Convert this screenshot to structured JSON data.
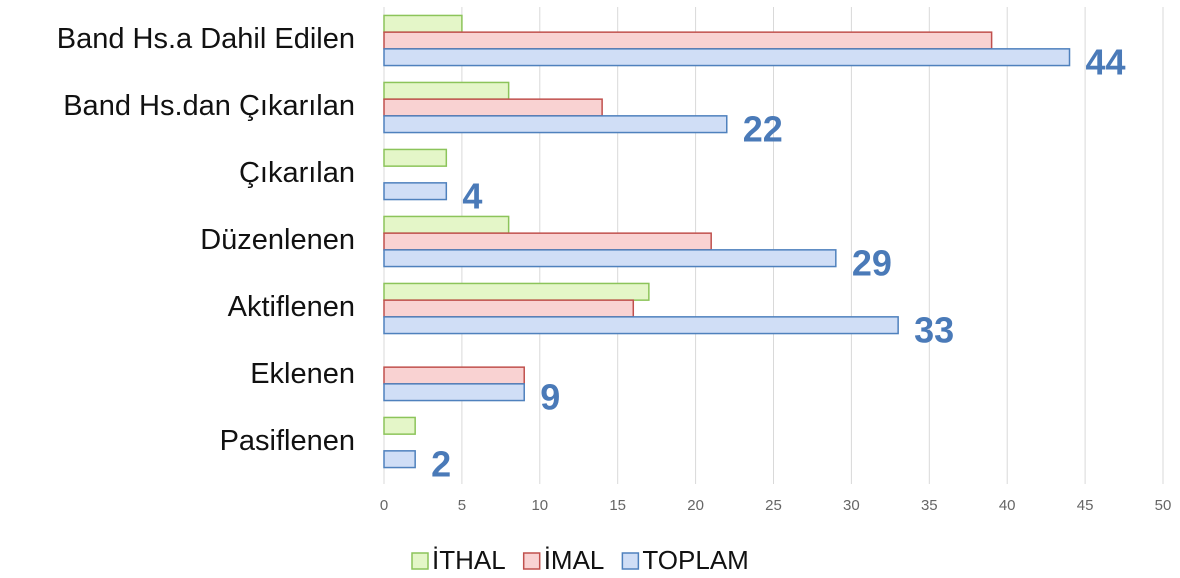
{
  "chart_data": {
    "type": "hbar",
    "categories": [
      "Band Hs.a Dahil Edilen",
      "Band Hs.dan Çıkarılan",
      "Çıkarılan",
      "Düzenlenen",
      "Aktiflenen",
      "Eklenen",
      "Pasiflenen"
    ],
    "series": [
      {
        "name": "İTHAL",
        "color": "#8cc45a",
        "values": [
          5,
          8,
          4,
          8,
          17,
          0,
          2
        ]
      },
      {
        "name": "İMAL",
        "color": "#c0504d",
        "values": [
          39,
          14,
          0,
          21,
          16,
          9,
          0
        ]
      },
      {
        "name": "TOPLAM",
        "color": "#4f81bd",
        "values": [
          44,
          22,
          4,
          29,
          33,
          9,
          2
        ]
      }
    ],
    "data_labels_series": "TOPLAM",
    "xlim": [
      0,
      50
    ],
    "xticks": [
      0,
      5,
      10,
      15,
      20,
      25,
      30,
      35,
      40,
      45,
      50
    ],
    "grid": true,
    "legend": "bottom"
  }
}
